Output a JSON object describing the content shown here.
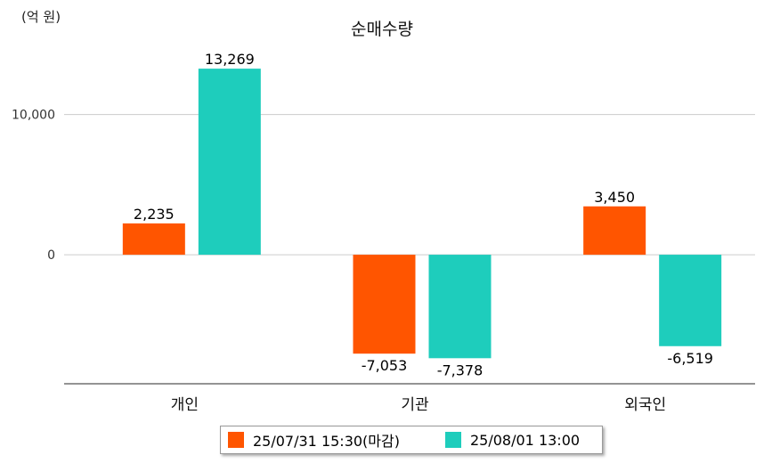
{
  "unit_label": "(억 원)",
  "chart_data": {
    "type": "bar",
    "title": "순매수량",
    "categories": [
      "개인",
      "기관",
      "외국인"
    ],
    "series": [
      {
        "name": "25/07/31 15:30(마감)",
        "color": "#FF5500",
        "values": [
          2235,
          -7053,
          3450
        ]
      },
      {
        "name": "25/08/01 13:00",
        "color": "#1ECDBC",
        "values": [
          13269,
          -7378,
          -6519
        ]
      }
    ],
    "value_labels": [
      [
        "2,235",
        "-7,053",
        "3,450"
      ],
      [
        "13,269",
        "-7,378",
        "-6,519"
      ]
    ],
    "ylim": [
      -9200,
      14800
    ],
    "yticks": [
      0,
      10000
    ],
    "ytick_labels": [
      "0",
      "10,000"
    ],
    "grid": true,
    "legend_position": "bottom"
  }
}
